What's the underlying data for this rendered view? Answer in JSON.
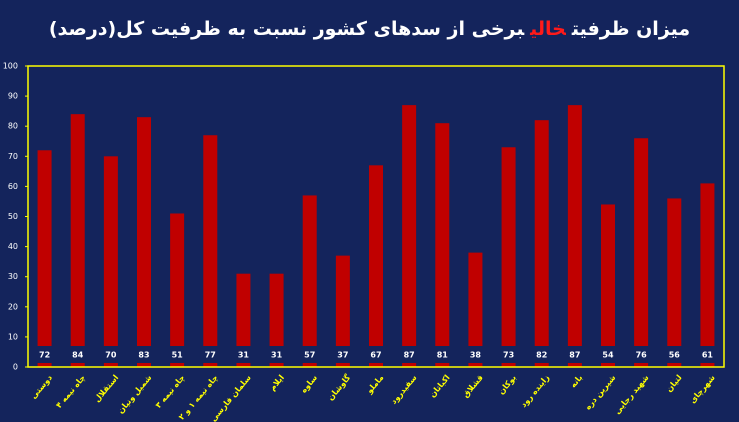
{
  "chart_data": {
    "type": "bar",
    "title_parts": [
      "میزان ظرفیت",
      "خالی",
      "برخی از سدهای کشور نسبت به ظرفیت کل(درصد)"
    ],
    "title_colors": [
      "#ffffff",
      "#ff1a1a",
      "#ffffff"
    ],
    "categories": [
      "دوستی",
      "چاه نیمه ۴",
      "استقلال",
      "شمیل ونیان",
      "چاه نیمه ۳",
      "چاه نیمه ۱ و ۲",
      "سلمان فارسی",
      "ایلام",
      "ساوه",
      "گاوشان",
      "ماملو",
      "سفیدرود",
      "اکباتان",
      "قشلاق",
      "بوکان",
      "زاینده رود",
      "بانه",
      "شیرین دره",
      "شهید رجایی",
      "لتیان",
      "شهرچای"
    ],
    "values": [
      72,
      84,
      70,
      83,
      51,
      77,
      31,
      31,
      57,
      37,
      67,
      87,
      81,
      38,
      73,
      82,
      87,
      54,
      76,
      56,
      61
    ],
    "color": "#c00000",
    "ylim": [
      0,
      100
    ],
    "yticks": [
      0,
      10,
      20,
      30,
      40,
      50,
      60,
      70,
      80,
      90,
      100
    ]
  }
}
